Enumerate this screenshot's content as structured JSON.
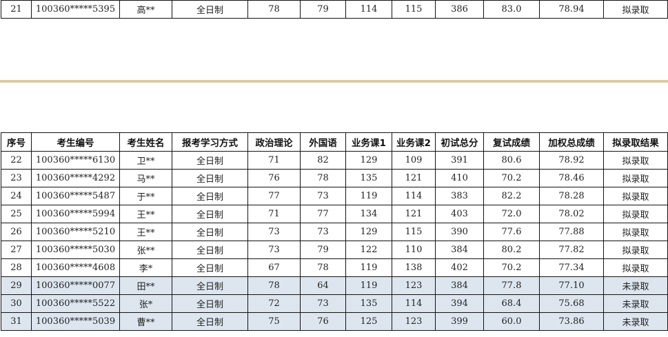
{
  "top_row": {
    "seq": "21",
    "id": "100360*****5395",
    "name": "高**",
    "mode": "全日制",
    "politics": "78",
    "language": "79",
    "course1": "114",
    "course2": "115",
    "initial_total": "386",
    "retest": "83.0",
    "weighted": "78.94",
    "result": "拟录取"
  },
  "headers": [
    "序号",
    "考生编号",
    "考生姓名",
    "报考学习方式",
    "政治理论",
    "外国语",
    "业务课1",
    "业务课2",
    "初试总分",
    "复试成绩",
    "加权总成绩",
    "拟录取结果"
  ],
  "rows": [
    [
      "22",
      "100360*****6130",
      "卫**",
      "全日制",
      "71",
      "82",
      "129",
      "109",
      "391",
      "80.6",
      "78.92",
      "拟录取"
    ],
    [
      "23",
      "100360*****4292",
      "马**",
      "全日制",
      "76",
      "78",
      "135",
      "121",
      "410",
      "70.2",
      "78.46",
      "拟录取"
    ],
    [
      "24",
      "100360*****5487",
      "于**",
      "全日制",
      "77",
      "73",
      "119",
      "114",
      "383",
      "82.2",
      "78.28",
      "拟录取"
    ],
    [
      "25",
      "100360*****5994",
      "王**",
      "全日制",
      "71",
      "77",
      "134",
      "121",
      "403",
      "72.0",
      "78.02",
      "拟录取"
    ],
    [
      "26",
      "100360*****5210",
      "王**",
      "全日制",
      "73",
      "73",
      "129",
      "115",
      "390",
      "77.6",
      "77.88",
      "拟录取"
    ],
    [
      "27",
      "100360*****5030",
      "张**",
      "全日制",
      "73",
      "79",
      "122",
      "110",
      "384",
      "80.2",
      "77.82",
      "拟录取"
    ],
    [
      "28",
      "100360*****4608",
      "李*",
      "全日制",
      "67",
      "78",
      "119",
      "138",
      "402",
      "70.2",
      "77.34",
      "拟录取"
    ],
    [
      "29",
      "100360*****0077",
      "田**",
      "全日制",
      "78",
      "64",
      "119",
      "123",
      "384",
      "77.8",
      "77.10",
      "未录取"
    ],
    [
      "30",
      "100360*****5522",
      "张*",
      "全日制",
      "72",
      "73",
      "135",
      "114",
      "394",
      "68.4",
      "75.68",
      "未录取"
    ],
    [
      "31",
      "100360*****5039",
      "曹**",
      "全日制",
      "75",
      "76",
      "125",
      "123",
      "399",
      "60.0",
      "73.86",
      "未录取"
    ]
  ],
  "colors": {
    "not_admitted_row": "#dde6ef",
    "separator": "#dccaa8"
  }
}
